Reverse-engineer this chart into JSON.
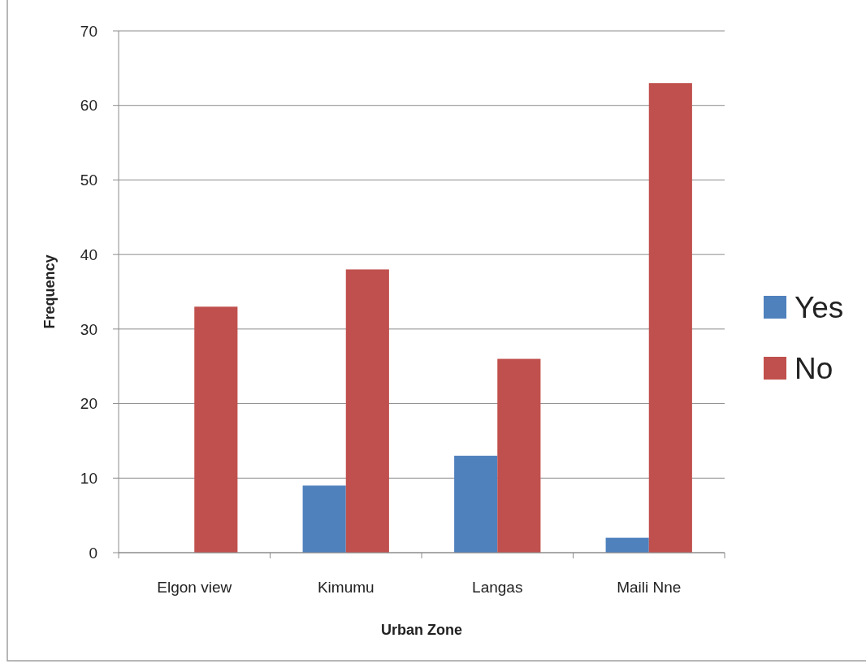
{
  "chart_data": {
    "type": "bar",
    "xlabel": "Urban Zone",
    "ylabel": "Frequency",
    "categories": [
      "Elgon view",
      "Kimumu",
      "Langas",
      "Maili Nne"
    ],
    "series": [
      {
        "name": "Yes",
        "color": "#4f81bd",
        "values": [
          0,
          9,
          13,
          2
        ]
      },
      {
        "name": "No",
        "color": "#c0504d",
        "values": [
          33,
          38,
          26,
          63
        ]
      }
    ],
    "ylim": [
      0,
      70
    ],
    "yticks": [
      0,
      10,
      20,
      30,
      40,
      50,
      60,
      70
    ],
    "grid": "y",
    "legend": "right"
  }
}
